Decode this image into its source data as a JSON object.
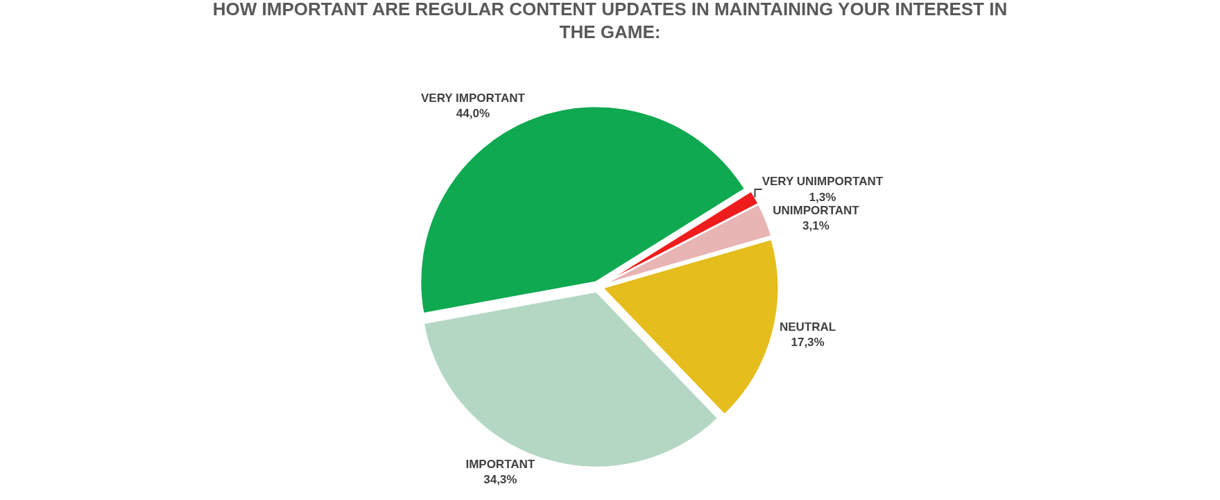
{
  "chart_data": {
    "type": "pie",
    "title": "HOW IMPORTANT ARE REGULAR CONTENT UPDATES IN MAINTAINING YOUR INTEREST IN THE GAME:",
    "categories": [
      "VERY UNIMPORTANT",
      "UNIMPORTANT",
      "NEUTRAL",
      "IMPORTANT",
      "VERY IMPORTANT"
    ],
    "values": [
      1.3,
      3.1,
      17.3,
      34.3,
      44.0
    ],
    "value_labels": [
      "1,3%",
      "3,1%",
      "17,3%",
      "34,3%",
      "44,0%"
    ],
    "colors": [
      "#ee1c1c",
      "#e8b4b4",
      "#e5bd1c",
      "#b3d7c3",
      "#0fa951"
    ],
    "legend": false
  }
}
